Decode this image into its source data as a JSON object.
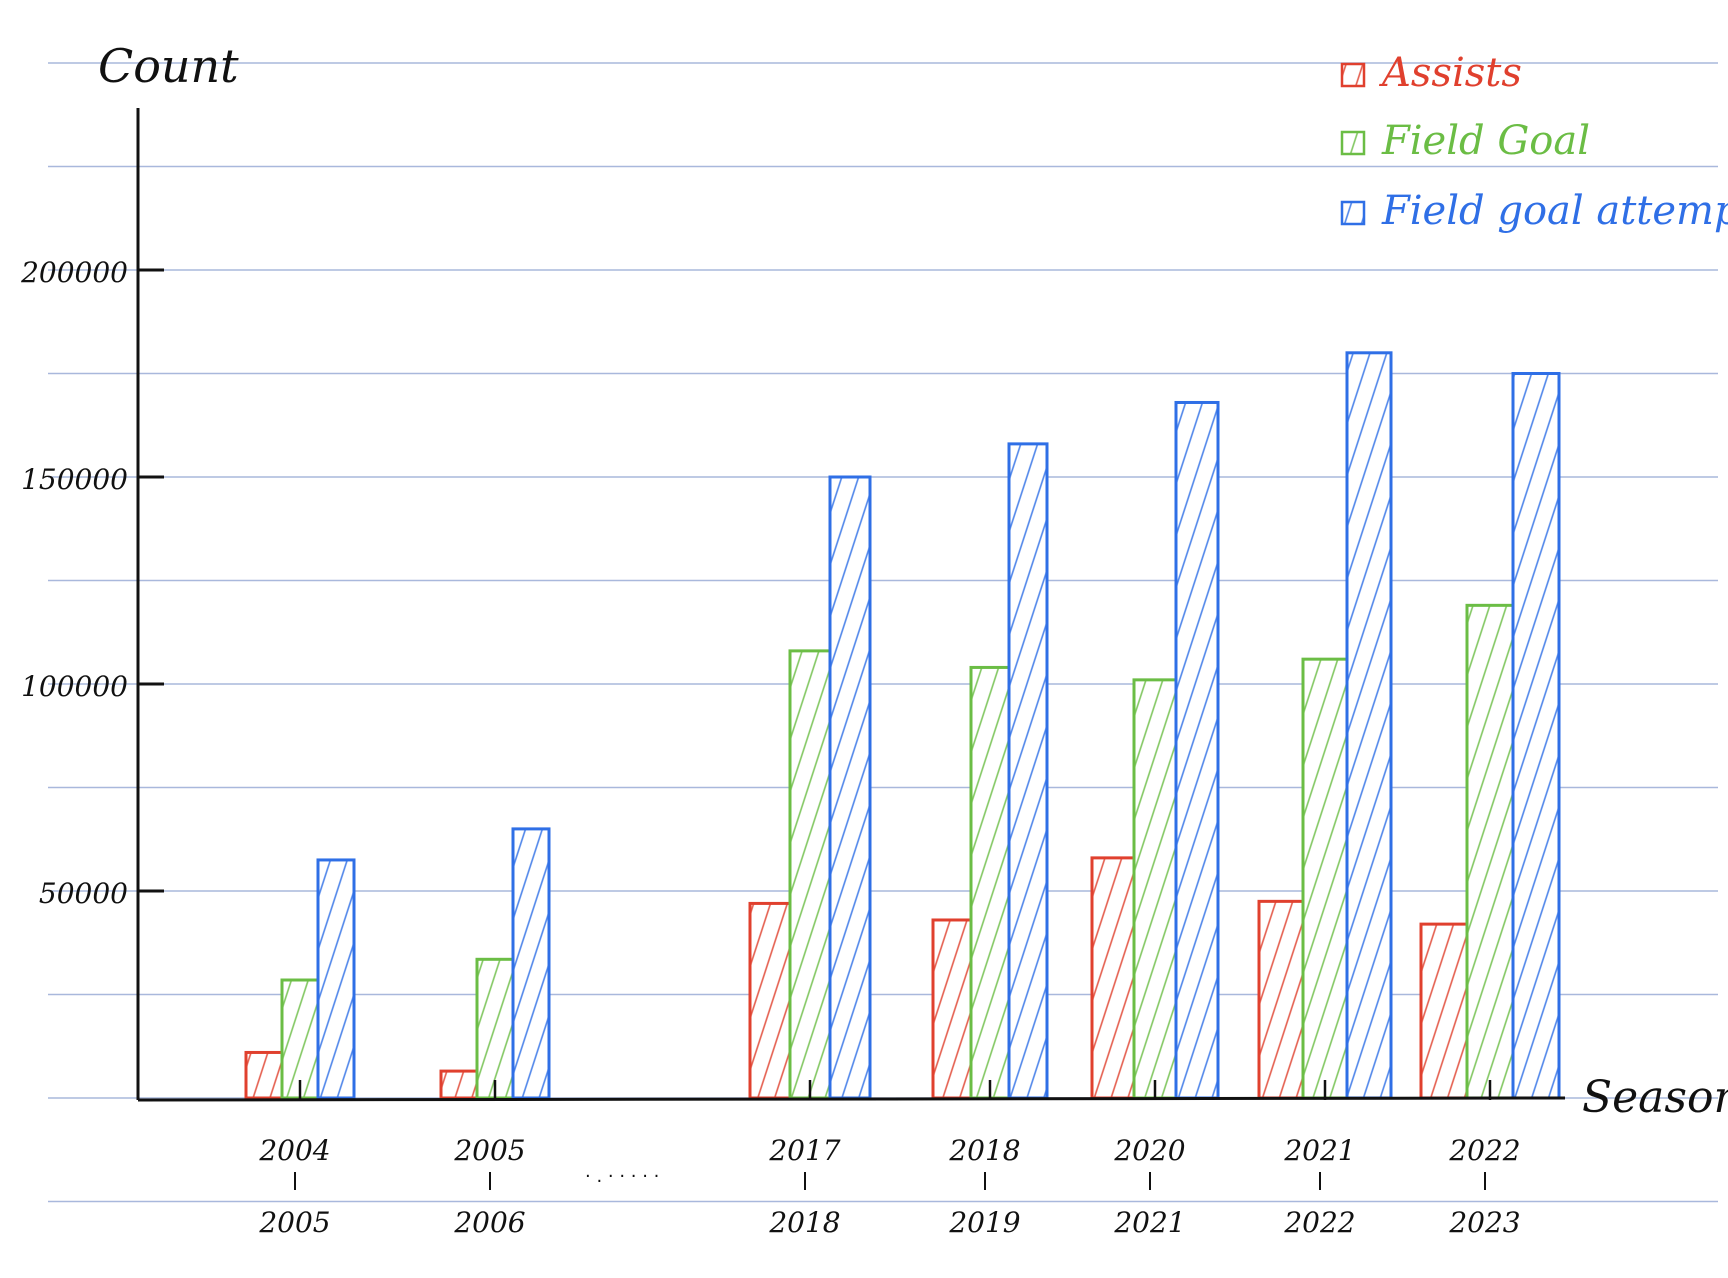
{
  "chart_data": {
    "type": "bar",
    "title": "",
    "ylabel": "Count",
    "xlabel": "Season",
    "ylim": [
      0,
      240000
    ],
    "yticks": [
      50000,
      100000,
      150000,
      200000
    ],
    "ytick_labels": [
      "50000",
      "100000",
      "150000",
      "200000"
    ],
    "grid": true,
    "legend_position": "top-right",
    "categories": [
      {
        "top": "2004",
        "bottom": "2005"
      },
      {
        "top": "2005",
        "bottom": "2006"
      },
      {
        "top": "2017",
        "bottom": "2018"
      },
      {
        "top": "2018",
        "bottom": "2019"
      },
      {
        "top": "2020",
        "bottom": "2021"
      },
      {
        "top": "2021",
        "bottom": "2022"
      },
      {
        "top": "2022",
        "bottom": "2023"
      }
    ],
    "axis_break_marker": "· . · · · · ·",
    "series": [
      {
        "name": "Assists",
        "color": "#e0402e",
        "values": [
          11000,
          6500,
          47000,
          43000,
          58000,
          47500,
          42000
        ]
      },
      {
        "name": "Field Goal",
        "color": "#6bbd45",
        "values": [
          28500,
          33500,
          108000,
          104000,
          101000,
          106000,
          119000
        ]
      },
      {
        "name": "Field goal attempts",
        "color": "#2f6fe6",
        "values": [
          57500,
          65000,
          150000,
          158000,
          168000,
          180000,
          175000
        ]
      }
    ]
  }
}
